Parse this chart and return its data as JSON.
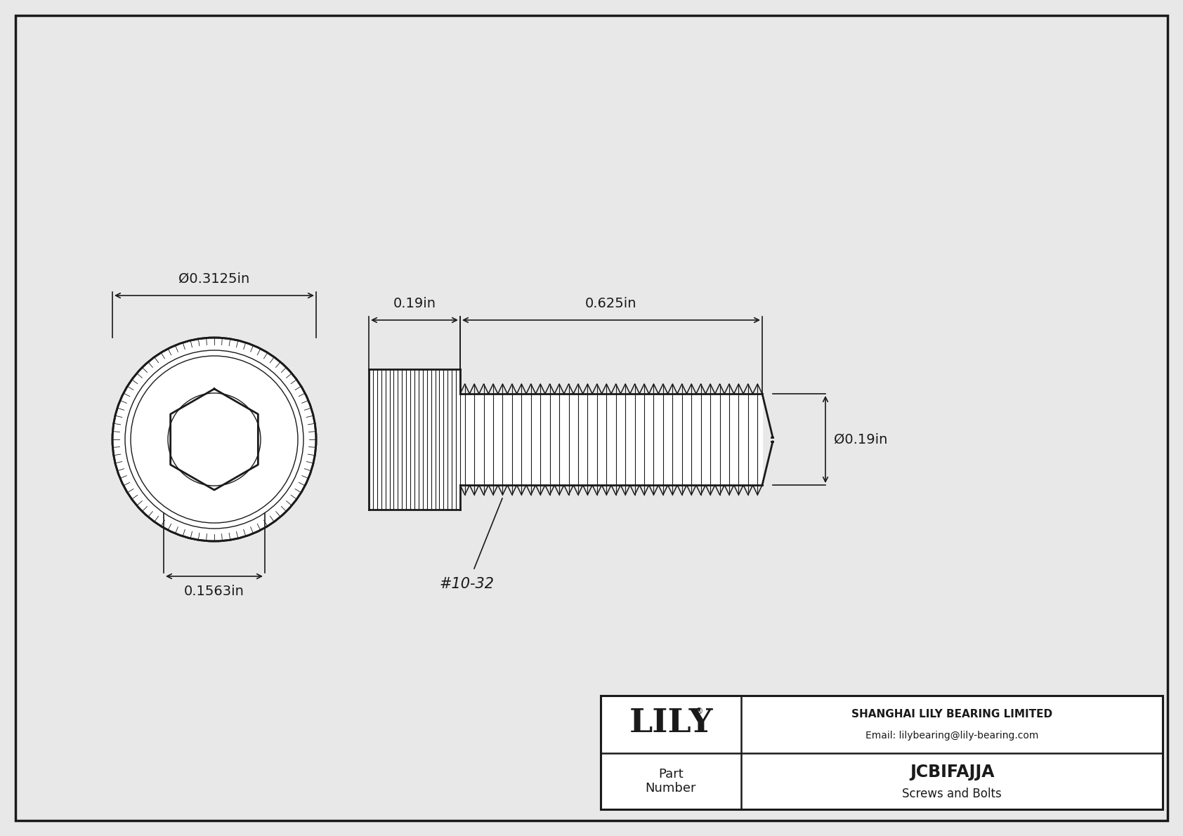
{
  "bg_color": "#e8e8e8",
  "line_color": "#1a1a1a",
  "white": "#ffffff",
  "title_company": "SHANGHAI LILY BEARING LIMITED",
  "title_email": "Email: lilybearing@lily-bearing.com",
  "part_number": "JCBIFAJJA",
  "part_category": "Screws and Bolts",
  "part_label": "Part\nNumber",
  "dim_head_diameter": "Ø0.3125in",
  "dim_head_length": "0.19in",
  "dim_thread_length": "0.625in",
  "dim_thread_diameter": "Ø0.19in",
  "dim_hex_socket": "0.1563in",
  "dim_thread_label": "#10-32",
  "border_color": "#1a1a1a",
  "lily_text": "LILY",
  "lily_reg": "®"
}
